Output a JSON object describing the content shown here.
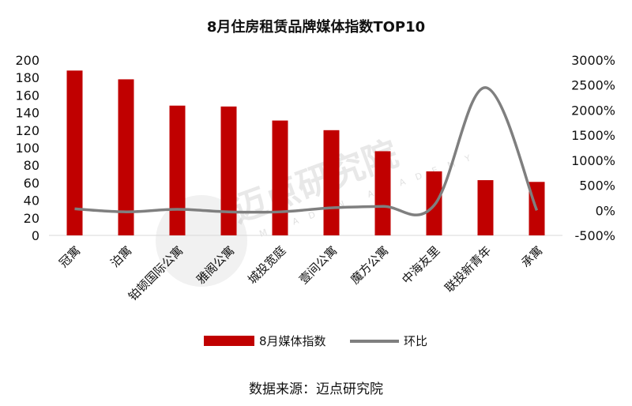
{
  "chart_data": {
    "type": "bar",
    "title": "8月住房租赁品牌媒体指数TOP10",
    "categories": [
      "冠寓",
      "泊寓",
      "铂顿国际公寓",
      "雅阁公寓",
      "城投宽庭",
      "壹间公寓",
      "魔方公寓",
      "中海友里",
      "联投新青年",
      "承寓"
    ],
    "series": [
      {
        "name": "8月媒体指数",
        "type": "bar",
        "axis": "left",
        "color": "#c00000",
        "values": [
          188,
          178,
          148,
          147,
          131,
          120,
          96,
          73,
          63,
          61
        ]
      },
      {
        "name": "环比",
        "type": "line",
        "axis": "right",
        "color": "#7f7f7f",
        "values": [
          30,
          -30,
          20,
          -30,
          -30,
          50,
          80,
          100,
          2450,
          0
        ]
      }
    ],
    "y_left": {
      "min": 0,
      "max": 200,
      "step": 20,
      "tick_labels": [
        "0",
        "20",
        "40",
        "60",
        "80",
        "100",
        "120",
        "140",
        "160",
        "180",
        "200"
      ]
    },
    "y_right": {
      "min": -500,
      "max": 3000,
      "step": 500,
      "tick_labels": [
        "-500%",
        "0%",
        "500%",
        "1000%",
        "1500%",
        "2000%",
        "2500%",
        "3000%"
      ]
    },
    "grid": false,
    "legend": "bottom"
  },
  "source_text": "数据来源：迈点研究院",
  "watermark": {
    "text": "迈点研究院",
    "subtext": "MEADIN ACADEMY"
  }
}
